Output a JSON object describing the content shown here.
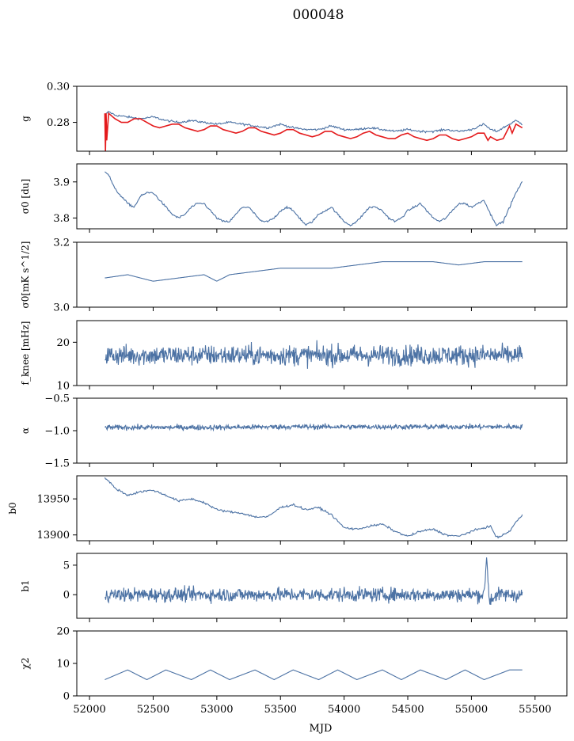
{
  "title": "000048",
  "colors": {
    "series": "#4c72a4",
    "model": "#e41a1c"
  },
  "chart_data": {
    "type": "line",
    "title": "000048",
    "xlabel": "MJD",
    "xlim": [
      51900,
      55750
    ],
    "xticks": [
      "52000",
      "52500",
      "53000",
      "53500",
      "54000",
      "54500",
      "55000",
      "55500"
    ],
    "x_range_data": [
      52120,
      55400
    ],
    "panels": [
      {
        "id": "g",
        "ylabel": "g",
        "ylim": [
          0.264,
          0.3
        ],
        "yticks": [
          {
            "v": 0.28,
            "label": "0.28"
          },
          {
            "v": 0.3,
            "label": "0.30"
          }
        ],
        "series": [
          {
            "color": "blue",
            "x": [
              52120,
              52150,
              52200,
              52300,
              52400,
              52500,
              52600,
              52700,
              52800,
              52900,
              53000,
              53100,
              53200,
              53300,
              53400,
              53500,
              53600,
              53700,
              53800,
              53900,
              54000,
              54100,
              54200,
              54300,
              54400,
              54500,
              54600,
              54700,
              54800,
              54900,
              55000,
              55100,
              55150,
              55200,
              55300,
              55350,
              55400
            ],
            "y": [
              0.284,
              0.286,
              0.284,
              0.283,
              0.282,
              0.283,
              0.281,
              0.28,
              0.281,
              0.28,
              0.279,
              0.28,
              0.279,
              0.278,
              0.277,
              0.279,
              0.277,
              0.276,
              0.276,
              0.278,
              0.276,
              0.276,
              0.277,
              0.276,
              0.275,
              0.276,
              0.275,
              0.275,
              0.276,
              0.275,
              0.276,
              0.279,
              0.276,
              0.275,
              0.279,
              0.281,
              0.279
            ]
          },
          {
            "color": "red",
            "x": [
              52120,
              52125,
              52130,
              52135,
              52150,
              52200,
              52250,
              52300,
              52350,
              52400,
              52450,
              52500,
              52550,
              52600,
              52650,
              52700,
              52750,
              52800,
              52850,
              52900,
              52950,
              53000,
              53050,
              53100,
              53150,
              53200,
              53250,
              53300,
              53350,
              53400,
              53450,
              53500,
              53550,
              53600,
              53650,
              53700,
              53750,
              53800,
              53850,
              53900,
              53950,
              54000,
              54050,
              54100,
              54150,
              54200,
              54250,
              54300,
              54350,
              54400,
              54450,
              54500,
              54550,
              54600,
              54650,
              54700,
              54750,
              54800,
              54850,
              54900,
              54950,
              55000,
              55050,
              55100,
              55130,
              55150,
              55200,
              55250,
              55300,
              55320,
              55350,
              55400
            ],
            "y": [
              0.285,
              0.264,
              0.285,
              0.27,
              0.285,
              0.282,
              0.28,
              0.28,
              0.282,
              0.282,
              0.28,
              0.278,
              0.277,
              0.278,
              0.279,
              0.279,
              0.277,
              0.276,
              0.275,
              0.276,
              0.278,
              0.278,
              0.276,
              0.275,
              0.274,
              0.275,
              0.277,
              0.277,
              0.275,
              0.274,
              0.273,
              0.274,
              0.276,
              0.276,
              0.274,
              0.273,
              0.272,
              0.273,
              0.275,
              0.275,
              0.273,
              0.272,
              0.271,
              0.272,
              0.274,
              0.275,
              0.273,
              0.272,
              0.271,
              0.271,
              0.273,
              0.274,
              0.272,
              0.271,
              0.27,
              0.271,
              0.273,
              0.273,
              0.271,
              0.27,
              0.271,
              0.272,
              0.274,
              0.274,
              0.27,
              0.272,
              0.27,
              0.271,
              0.278,
              0.274,
              0.279,
              0.277
            ]
          }
        ]
      },
      {
        "id": "sigma0_du",
        "ylabel": "σ0 [du]",
        "ylim": [
          3.77,
          3.95
        ],
        "yticks": [
          {
            "v": 3.8,
            "label": "3.8"
          },
          {
            "v": 3.9,
            "label": "3.9"
          }
        ],
        "series": [
          {
            "color": "blue",
            "x": [
              52120,
              52150,
              52200,
              52250,
              52300,
              52350,
              52400,
              52450,
              52500,
              52550,
              52600,
              52650,
              52700,
              52750,
              52800,
              52850,
              52900,
              52950,
              53000,
              53050,
              53100,
              53150,
              53200,
              53250,
              53300,
              53350,
              53400,
              53450,
              53500,
              53550,
              53600,
              53650,
              53700,
              53750,
              53800,
              53850,
              53900,
              53950,
              54000,
              54050,
              54100,
              54150,
              54200,
              54250,
              54300,
              54350,
              54400,
              54450,
              54500,
              54550,
              54600,
              54650,
              54700,
              54750,
              54800,
              54850,
              54900,
              54950,
              55000,
              55050,
              55100,
              55150,
              55200,
              55250,
              55300,
              55350,
              55400
            ],
            "y": [
              3.93,
              3.92,
              3.88,
              3.86,
              3.84,
              3.83,
              3.86,
              3.87,
              3.87,
              3.85,
              3.83,
              3.81,
              3.8,
              3.81,
              3.83,
              3.84,
              3.84,
              3.82,
              3.8,
              3.79,
              3.79,
              3.81,
              3.83,
              3.83,
              3.81,
              3.79,
              3.79,
              3.8,
              3.82,
              3.83,
              3.82,
              3.8,
              3.78,
              3.79,
              3.81,
              3.82,
              3.83,
              3.81,
              3.79,
              3.78,
              3.79,
              3.81,
              3.83,
              3.83,
              3.82,
              3.8,
              3.79,
              3.8,
              3.82,
              3.83,
              3.84,
              3.82,
              3.8,
              3.79,
              3.8,
              3.82,
              3.84,
              3.84,
              3.83,
              3.84,
              3.85,
              3.81,
              3.78,
              3.79,
              3.83,
              3.87,
              3.9
            ]
          }
        ]
      },
      {
        "id": "sigma0_mK",
        "ylabel": "σ0[mK s^1/2]",
        "ylim": [
          3.0,
          3.2
        ],
        "yticks": [
          {
            "v": 3.0,
            "label": "3.0"
          },
          {
            "v": 3.2,
            "label": "3.2"
          }
        ],
        "series": [
          {
            "color": "blue",
            "noisy": true,
            "amp": 0.008,
            "x": [
              52120,
              52300,
              52500,
              52700,
              52900,
              53000,
              53100,
              53300,
              53500,
              53700,
              53900,
              54100,
              54300,
              54500,
              54700,
              54900,
              55100,
              55300,
              55400
            ],
            "y": [
              3.09,
              3.1,
              3.08,
              3.09,
              3.1,
              3.08,
              3.1,
              3.11,
              3.12,
              3.12,
              3.12,
              3.13,
              3.14,
              3.14,
              3.14,
              3.13,
              3.14,
              3.14,
              3.14
            ]
          }
        ]
      },
      {
        "id": "fknee",
        "ylabel": "f_knee [mHz]",
        "ylim": [
          10,
          25
        ],
        "yticks": [
          {
            "v": 10,
            "label": "10"
          },
          {
            "v": 20,
            "label": "20"
          }
        ],
        "series": [
          {
            "color": "blue",
            "noisy": true,
            "amp": 1.2,
            "x": [
              52120,
              52500,
              53000,
              53500,
              54000,
              54500,
              55000,
              55400
            ],
            "y": [
              17,
              17,
              17,
              17,
              17,
              17,
              17,
              17
            ]
          }
        ]
      },
      {
        "id": "alpha",
        "ylabel": "α",
        "ylim": [
          -1.5,
          -0.5
        ],
        "yticks": [
          {
            "v": -1.5,
            "label": "−1.5"
          },
          {
            "v": -1.0,
            "label": "−1.0"
          },
          {
            "v": -0.5,
            "label": "−0.5"
          }
        ],
        "series": [
          {
            "color": "blue",
            "noisy": true,
            "amp": 0.02,
            "x": [
              52120,
              52500,
              53000,
              53500,
              54000,
              54500,
              55000,
              55400
            ],
            "y": [
              -0.95,
              -0.95,
              -0.95,
              -0.94,
              -0.94,
              -0.94,
              -0.94,
              -0.94
            ]
          }
        ]
      },
      {
        "id": "b0",
        "ylabel": "b0",
        "ylim": [
          13892,
          13982
        ],
        "yticks": [
          {
            "v": 13900,
            "label": "13900"
          },
          {
            "v": 13950,
            "label": "13950"
          }
        ],
        "series": [
          {
            "color": "blue",
            "x": [
              52120,
              52200,
              52300,
              52400,
              52500,
              52600,
              52700,
              52800,
              52900,
              53000,
              53100,
              53200,
              53300,
              53400,
              53500,
              53600,
              53700,
              53800,
              53900,
              54000,
              54100,
              54200,
              54300,
              54400,
              54500,
              54600,
              54700,
              54800,
              54900,
              55000,
              55100,
              55150,
              55200,
              55250,
              55300,
              55350,
              55400
            ],
            "y": [
              13980,
              13965,
              13955,
              13960,
              13962,
              13955,
              13947,
              13950,
              13945,
              13935,
              13932,
              13930,
              13925,
              13925,
              13938,
              13942,
              13935,
              13938,
              13928,
              13910,
              13908,
              13912,
              13915,
              13905,
              13898,
              13905,
              13908,
              13900,
              13898,
              13905,
              13910,
              13912,
              13896,
              13900,
              13905,
              13918,
              13927
            ]
          }
        ]
      },
      {
        "id": "b1",
        "ylabel": "b1",
        "ylim": [
          -4,
          7
        ],
        "yticks": [
          {
            "v": 0,
            "label": "0"
          },
          {
            "v": 5,
            "label": "5"
          }
        ],
        "series": [
          {
            "color": "blue",
            "noisy": true,
            "amp": 0.6,
            "x": [
              52120,
              52500,
              53000,
              53500,
              54000,
              54500,
              55000,
              55100,
              55120,
              55140,
              55200,
              55400
            ],
            "y": [
              0,
              0,
              0,
              0,
              0,
              0,
              0,
              0,
              6.5,
              -1,
              0,
              0
            ]
          }
        ]
      },
      {
        "id": "chi2",
        "ylabel": "χ2",
        "ylim": [
          0,
          20
        ],
        "yticks": [
          {
            "v": 0,
            "label": "0"
          },
          {
            "v": 10,
            "label": "10"
          },
          {
            "v": 20,
            "label": "20"
          }
        ],
        "series": [
          {
            "color": "blue",
            "noisy": true,
            "amp": 1.3,
            "x": [
              52120,
              52300,
              52450,
              52600,
              52800,
              52950,
              53100,
              53300,
              53450,
              53600,
              53800,
              53950,
              54100,
              54300,
              54450,
              54600,
              54800,
              54950,
              55100,
              55300,
              55400
            ],
            "y": [
              5,
              8,
              5,
              8,
              5,
              8,
              5,
              8,
              5,
              8,
              5,
              8,
              5,
              8,
              5,
              8,
              5,
              8,
              5,
              8,
              8
            ]
          }
        ]
      }
    ]
  }
}
